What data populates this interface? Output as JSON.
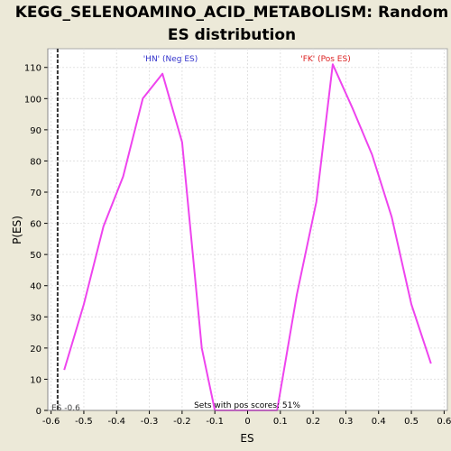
{
  "chart_data": {
    "type": "line",
    "title_line1": "KEGG_SELENOAMINO_ACID_METABOLISM: Random",
    "title_line2": "ES distribution",
    "xlabel": "ES",
    "ylabel": "P(ES)",
    "xlim": [
      -0.61,
      0.61
    ],
    "ylim": [
      0,
      116
    ],
    "x_ticks": [
      "-0.6",
      "-0.5",
      "-0.4",
      "-0.3",
      "-0.2",
      "-0.1",
      "0",
      "0.1",
      "0.2",
      "0.3",
      "0.4",
      "0.5",
      "0.6"
    ],
    "x_tick_values": [
      -0.6,
      -0.5,
      -0.4,
      -0.3,
      -0.2,
      -0.1,
      0,
      0.1,
      0.2,
      0.3,
      0.4,
      0.5,
      0.6
    ],
    "y_ticks": [
      "0",
      "10",
      "20",
      "30",
      "40",
      "50",
      "60",
      "70",
      "80",
      "90",
      "100",
      "110"
    ],
    "y_tick_values": [
      0,
      10,
      20,
      30,
      40,
      50,
      60,
      70,
      80,
      90,
      100,
      110
    ],
    "grid": true,
    "series": [
      {
        "color": "#EE44EE",
        "x": [
          -0.56,
          -0.5,
          -0.44,
          -0.38,
          -0.32,
          -0.26,
          -0.2,
          -0.14,
          -0.1,
          0.09,
          0.15,
          0.21,
          0.26,
          0.32,
          0.38,
          0.44,
          0.5,
          0.56
        ],
        "y": [
          13,
          34,
          59,
          75,
          100,
          108,
          86,
          20,
          0,
          0,
          37,
          67,
          111,
          97,
          82,
          62,
          34,
          15
        ]
      }
    ],
    "observed_es": {
      "value": -0.58,
      "label": "ES -0.6"
    },
    "annotations": {
      "neg_label": "'HN' (Neg ES)",
      "neg_color": "#3333CC",
      "pos_label": "'FK' (Pos ES)",
      "pos_color": "#DD2222",
      "pos_scores": "Sets with pos scores: 51%"
    }
  }
}
